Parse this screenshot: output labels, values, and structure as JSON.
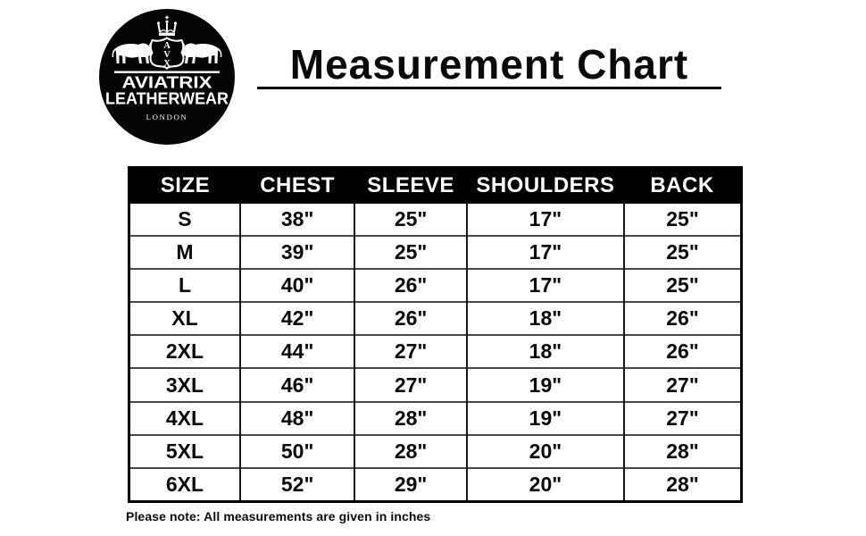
{
  "logo": {
    "brand_line1": "AVIATRIX",
    "brand_line2": "LEATHERWEAR",
    "city": "LONDON",
    "monogram_top": "A",
    "monogram_mid": "V",
    "monogram_bottom": "X"
  },
  "header": {
    "title": "Measurement Chart"
  },
  "footer": {
    "note": "Please note: All measurements are given in inches"
  },
  "chart_data": {
    "type": "table",
    "title": "Measurement Chart",
    "units": "inches",
    "columns": [
      "SIZE",
      "CHEST",
      "SLEEVE",
      "SHOULDERS",
      "BACK"
    ],
    "rows": [
      [
        "S",
        "38\"",
        "25\"",
        "17\"",
        "25\""
      ],
      [
        "M",
        "39\"",
        "25\"",
        "17\"",
        "25\""
      ],
      [
        "L",
        "40\"",
        "26\"",
        "17\"",
        "25\""
      ],
      [
        "XL",
        "42\"",
        "26\"",
        "18\"",
        "26\""
      ],
      [
        "2XL",
        "44\"",
        "27\"",
        "18\"",
        "26\""
      ],
      [
        "3XL",
        "46\"",
        "27\"",
        "19\"",
        "27\""
      ],
      [
        "4XL",
        "48\"",
        "28\"",
        "19\"",
        "27\""
      ],
      [
        "5XL",
        "50\"",
        "28\"",
        "20\"",
        "28\""
      ],
      [
        "6XL",
        "52\"",
        "29\"",
        "20\"",
        "28\""
      ]
    ]
  },
  "colors": {
    "background": "#ffffff",
    "header_bg": "#000000",
    "header_text": "#ffffff",
    "grid_vertical": "#161616",
    "grid_horizontal": "#474747",
    "outer_border": "#000000",
    "logo_bg": "#050505",
    "logo_fg": "#ffffff"
  }
}
